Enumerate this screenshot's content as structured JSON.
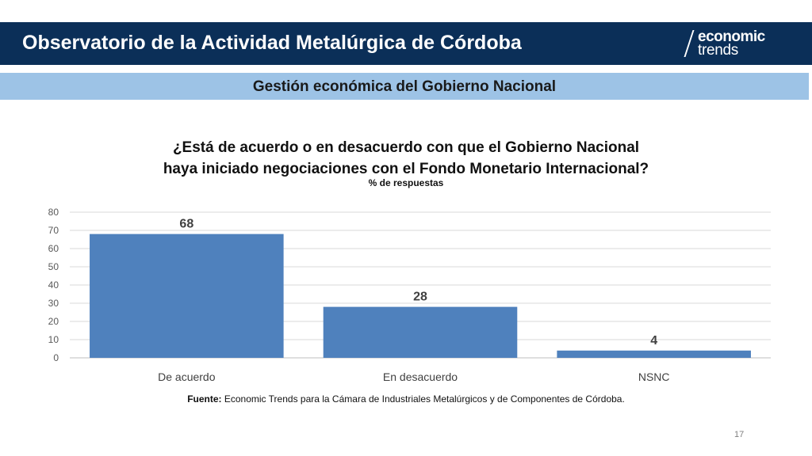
{
  "header": {
    "title": "Observatorio de la Actividad Metalúrgica de Córdoba",
    "logo_line1": "economic",
    "logo_line2": "trends",
    "bar_color": "#0b2f58"
  },
  "section": {
    "title": "Gestión económica del Gobierno Nacional",
    "bar_color": "#9dc3e6"
  },
  "chart_data": {
    "type": "bar",
    "title_line1": "¿Está de acuerdo o en desacuerdo con que el Gobierno Nacional",
    "title_line2": "haya iniciado negociaciones con el Fondo Monetario Internacional?",
    "subtitle": "% de respuestas",
    "categories": [
      "De acuerdo",
      "En desacuerdo",
      "NSNC"
    ],
    "values": [
      68,
      28,
      4
    ],
    "data_labels": [
      "68",
      "28",
      "4"
    ],
    "ylim": [
      0,
      80
    ],
    "yticks": [
      0,
      10,
      20,
      30,
      40,
      50,
      60,
      70,
      80
    ],
    "grid": true,
    "bar_color": "#4f81bd",
    "xlabel": "",
    "ylabel": ""
  },
  "source": {
    "label": "Fuente:",
    "text": " Economic Trends para la Cámara de Industriales Metalúrgicos y de Componentes de Córdoba."
  },
  "page_number": "17"
}
